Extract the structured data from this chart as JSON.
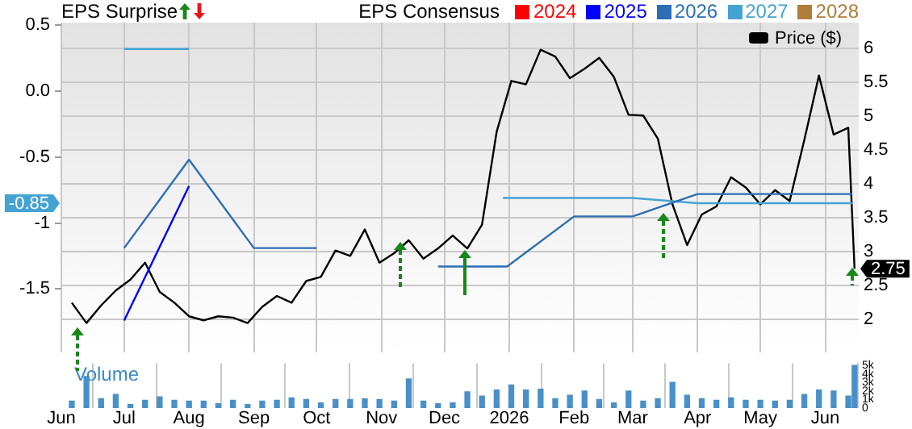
{
  "chart_data": [
    {
      "type": "line",
      "annotations": [
        "EPS Surprise",
        {
          "text": "-0.85",
          "y": -0.85
        }
      ],
      "legend_title": "EPS Consensus",
      "legend": "top",
      "marker": "none",
      "grid": true,
      "tick_labels": "y",
      "xlim": [
        "2025-06-01",
        "2026-06-17"
      ],
      "xticks": [
        {
          "value": "2025-06-01",
          "label": null
        },
        {
          "value": "2025-07-01",
          "label": null
        },
        {
          "value": "2025-08-01",
          "label": null
        },
        {
          "value": "2025-09-01",
          "label": null
        },
        {
          "value": "2025-10-01",
          "label": null
        },
        {
          "value": "2025-11-01",
          "label": null
        },
        {
          "value": "2025-12-01",
          "label": null
        },
        {
          "value": "2026-01-01",
          "label": null
        },
        {
          "value": "2026-02-01",
          "label": null
        },
        {
          "value": "2026-03-01",
          "label": null
        },
        {
          "value": "2026-04-01",
          "label": null
        },
        {
          "value": "2026-05-01",
          "label": null
        },
        {
          "value": "2026-06-01",
          "label": null
        }
      ],
      "ylim": [
        -1.98,
        0.52
      ],
      "yticks": [
        0.5,
        {
          "value": 0,
          "label": "0.0"
        },
        -0.5,
        -1,
        -1.5
      ],
      "y2lim": [
        1.52,
        6.38
      ],
      "y2ticks": [
        2,
        2.5,
        3,
        3.5,
        4,
        4.5,
        5,
        5.5,
        6
      ],
      "series": [
        {
          "name": "2024",
          "color": "#ff0000"
        },
        {
          "name": "2025",
          "color": "#0000ff",
          "x": [
            "2025-07-01",
            "2025-08-01"
          ],
          "values": [
            -1.74,
            -0.72
          ]
        },
        {
          "name": "2026",
          "color": "#2d6db5",
          "x": [
            "2025-07-01",
            "2025-08-01",
            "2025-09-01",
            "2025-10-01",
            "2025-11-01",
            "2025-11-28",
            "2025-12-31",
            "2026-02-01",
            "2026-03-01",
            "2026-04-01",
            "2026-06-14"
          ],
          "values": [
            -1.19,
            -0.52,
            -1.19,
            -1.19,
            null,
            -1.33,
            -1.33,
            -0.95,
            -0.95,
            -0.78,
            -0.78
          ]
        },
        {
          "name": "2027",
          "color": "#45a3d4",
          "x": [
            "2025-07-01",
            "2025-08-01",
            "2025-09-01",
            "2025-12-29",
            "2026-03-01",
            "2026-04-01",
            "2026-06-14"
          ],
          "values": [
            0.32,
            0.32,
            null,
            -0.81,
            -0.81,
            -0.85,
            -0.85
          ]
        },
        {
          "name": "2028",
          "color": "#b07d3a"
        },
        {
          "name": "Price ($)",
          "color": "#000000",
          "axis": "y2",
          "x": [
            "2025-06-06",
            "2025-06-13",
            "2025-06-20",
            "2025-06-27",
            "2025-07-04",
            "2025-07-11",
            "2025-07-18",
            "2025-07-25",
            "2025-08-01",
            "2025-08-08",
            "2025-08-15",
            "2025-08-22",
            "2025-08-29",
            "2025-09-05",
            "2025-09-12",
            "2025-09-19",
            "2025-09-26",
            "2025-10-03",
            "2025-10-10",
            "2025-10-17",
            "2025-10-24",
            "2025-10-31",
            "2025-11-07",
            "2025-11-14",
            "2025-11-21",
            "2025-11-28",
            "2025-12-05",
            "2025-12-12",
            "2025-12-19",
            "2025-12-26",
            "2026-01-02",
            "2026-01-09",
            "2026-01-16",
            "2026-01-23",
            "2026-01-30",
            "2026-02-06",
            "2026-02-13",
            "2026-02-20",
            "2026-02-27",
            "2026-03-06",
            "2026-03-13",
            "2026-03-20",
            "2026-03-27",
            "2026-04-03",
            "2026-04-10",
            "2026-04-17",
            "2026-04-24",
            "2026-05-01",
            "2026-05-08",
            "2026-05-15",
            "2026-05-22",
            "2026-05-29",
            "2026-06-05",
            "2026-06-12",
            "2026-06-15"
          ],
          "values": [
            2.25,
            1.95,
            2.21,
            2.43,
            2.59,
            2.84,
            2.41,
            2.25,
            2.05,
            1.99,
            2.05,
            2.03,
            1.95,
            2.19,
            2.35,
            2.25,
            2.57,
            2.63,
            3.02,
            2.94,
            3.33,
            2.84,
            2.98,
            3.17,
            2.9,
            3.05,
            3.24,
            3.05,
            3.4,
            4.77,
            5.52,
            5.47,
            5.98,
            5.88,
            5.56,
            5.7,
            5.86,
            5.58,
            5.02,
            5.01,
            4.67,
            3.7,
            3.1,
            3.55,
            3.67,
            4.1,
            3.95,
            3.7,
            3.91,
            3.75,
            4.65,
            5.6,
            4.73,
            4.83,
            2.75
          ],
          "value_labels": [
            null,
            null,
            null,
            null,
            null,
            null,
            null,
            null,
            null,
            null,
            null,
            null,
            null,
            null,
            null,
            null,
            null,
            null,
            null,
            null,
            null,
            null,
            null,
            null,
            null,
            null,
            null,
            null,
            null,
            null,
            null,
            null,
            null,
            null,
            null,
            null,
            null,
            null,
            null,
            null,
            null,
            null,
            null,
            null,
            null,
            null,
            null,
            null,
            null,
            null,
            null,
            null,
            null,
            null,
            "2.75"
          ]
        }
      ]
    },
    {
      "type": "bar",
      "title": "Volume",
      "color": "#4a90c8",
      "grid": "x",
      "x": [
        "2025-06-06",
        "2025-06-13",
        "2025-06-20",
        "2025-06-27",
        "2025-07-04",
        "2025-07-11",
        "2025-07-18",
        "2025-07-25",
        "2025-08-01",
        "2025-08-08",
        "2025-08-15",
        "2025-08-22",
        "2025-08-29",
        "2025-09-05",
        "2025-09-12",
        "2025-09-19",
        "2025-09-26",
        "2025-10-03",
        "2025-10-10",
        "2025-10-17",
        "2025-10-24",
        "2025-10-31",
        "2025-11-07",
        "2025-11-14",
        "2025-11-21",
        "2025-11-28",
        "2025-12-05",
        "2025-12-12",
        "2025-12-19",
        "2025-12-26",
        "2026-01-02",
        "2026-01-09",
        "2026-01-16",
        "2026-01-23",
        "2026-01-30",
        "2026-02-06",
        "2026-02-13",
        "2026-02-20",
        "2026-02-27",
        "2026-03-06",
        "2026-03-13",
        "2026-03-20",
        "2026-03-27",
        "2026-04-03",
        "2026-04-10",
        "2026-04-17",
        "2026-04-24",
        "2026-05-01",
        "2026-05-08",
        "2026-05-15",
        "2026-05-22",
        "2026-05-29",
        "2026-06-05",
        "2026-06-12",
        "2026-06-15"
      ],
      "values": [
        0.8,
        3.7,
        1.1,
        1.6,
        0.4,
        0.9,
        1.3,
        0.9,
        0.8,
        0.8,
        0.5,
        0.9,
        0.4,
        0.8,
        0.9,
        1.2,
        1.0,
        0.6,
        1.0,
        1.0,
        1.1,
        1.0,
        0.8,
        3.4,
        0.8,
        0.5,
        0.6,
        1.9,
        1.4,
        2.1,
        2.7,
        2.1,
        2.2,
        1.1,
        1.5,
        2.0,
        1.0,
        0.6,
        2.0,
        0.8,
        1.1,
        3.0,
        1.5,
        1.1,
        0.9,
        1.2,
        0.9,
        0.9,
        0.8,
        0.9,
        1.6,
        2.1,
        2.0,
        1.4,
        5.0
      ],
      "xlim": [
        "2025-06-01",
        "2026-06-17"
      ],
      "xticks": [
        {
          "value": "2025-06-01",
          "label": "Jun"
        },
        {
          "value": "2025-07-01",
          "label": "Jul"
        },
        {
          "value": "2025-08-01",
          "label": "Aug"
        },
        {
          "value": "2025-09-01",
          "label": "Sep"
        },
        {
          "value": "2025-10-01",
          "label": "Oct"
        },
        {
          "value": "2025-11-01",
          "label": "Nov"
        },
        {
          "value": "2025-12-01",
          "label": "Dec"
        },
        {
          "value": "2026-01-01",
          "label": "2026"
        },
        {
          "value": "2026-02-01",
          "label": "Feb"
        },
        {
          "value": "2026-03-01",
          "label": "Mar"
        },
        {
          "value": "2026-04-01",
          "label": "Apr"
        },
        {
          "value": "2026-05-01",
          "label": "May"
        },
        {
          "value": "2026-06-01",
          "label": "Jun"
        }
      ],
      "ylim": [
        0,
        5.25
      ],
      "yticks": [
        0,
        {
          "value": 1,
          "label": "1k"
        },
        {
          "value": 2,
          "label": "2k"
        },
        {
          "value": 3,
          "label": "3k"
        },
        {
          "value": 4,
          "label": "4k"
        },
        {
          "value": 5,
          "label": "5k"
        }
      ]
    }
  ]
}
